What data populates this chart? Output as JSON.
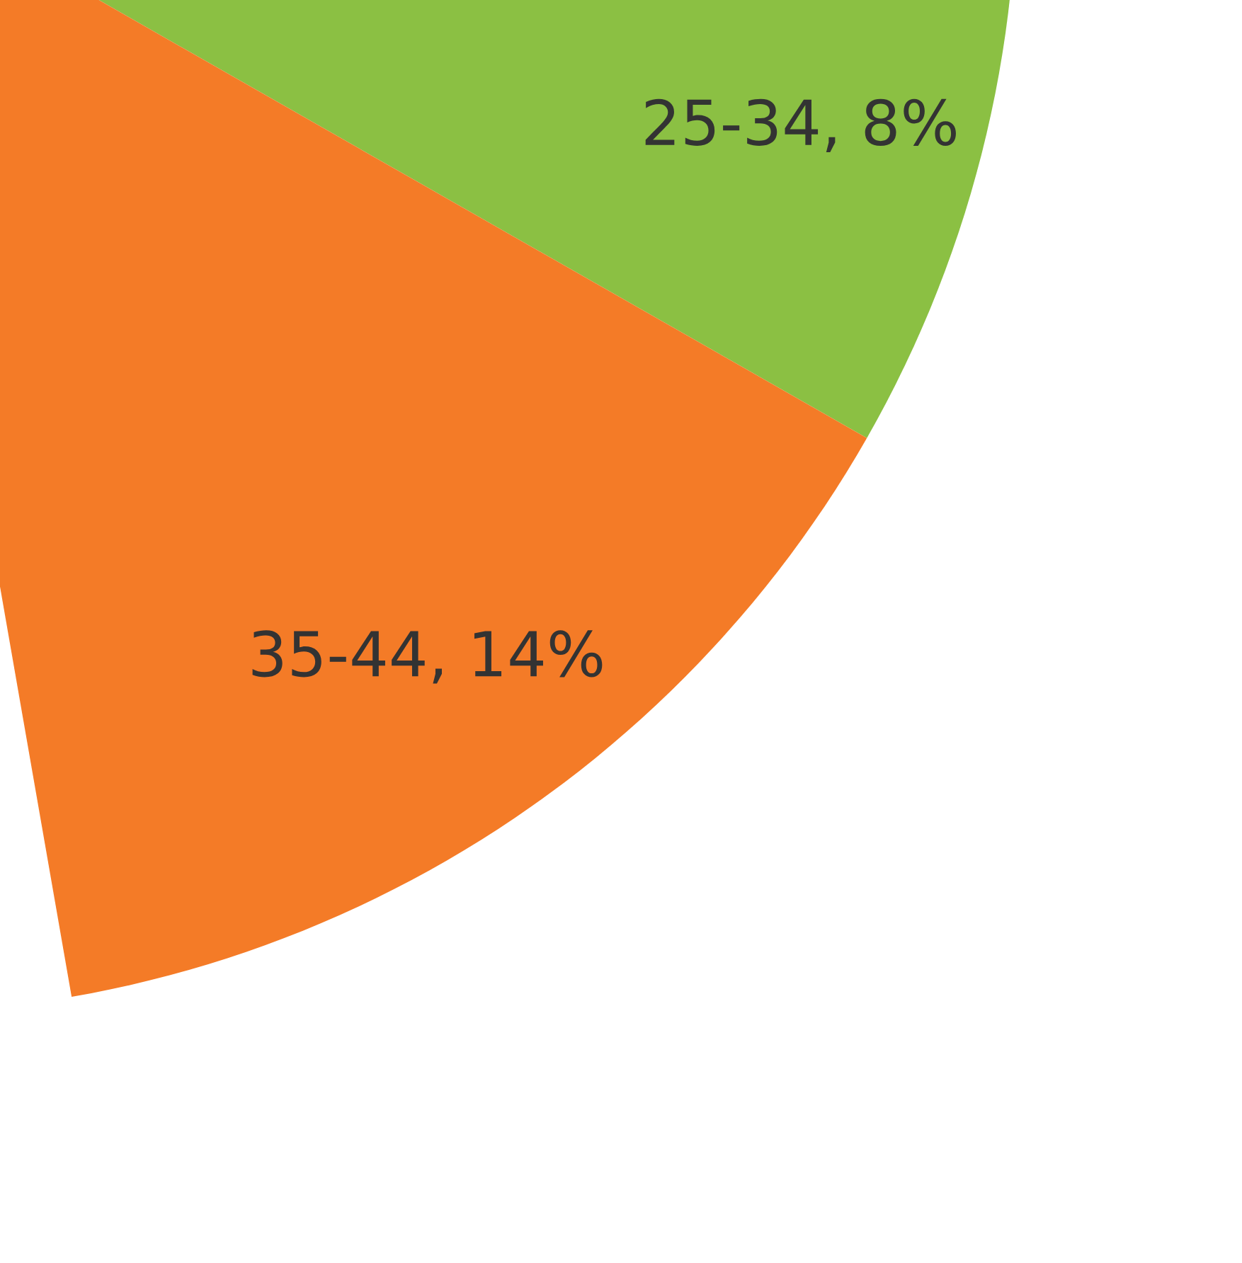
{
  "chart_data": {
    "type": "pie",
    "categories": [
      "25-34",
      "35-44"
    ],
    "values": [
      8,
      14
    ],
    "value_labels": [
      ", 8%",
      ", 14%"
    ],
    "colors": [
      "#8bc043",
      "#f47b27"
    ]
  }
}
